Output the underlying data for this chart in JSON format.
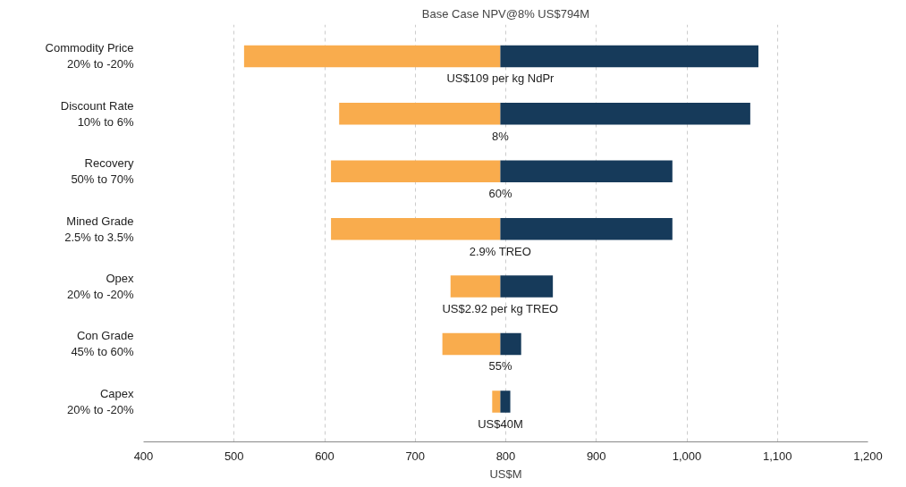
{
  "chart_data": {
    "type": "bar",
    "orientation": "horizontal",
    "title": "Base Case NPV@8% US$794M",
    "xlabel": "US$M",
    "categories": [
      "Commodity Price\n20% to -20%",
      "Discount Rate\n10% to 6%",
      "Recovery\n50% to 70%",
      "Mined Grade\n2.5% to 3.5%",
      "Opex\n20% to -20%",
      "Con Grade\n45% to 60%",
      "Capex\n20% to -20%"
    ],
    "series": [
      {
        "color": "#f9ac4d",
        "base": [
          511,
          616,
          607,
          607,
          739,
          730,
          785
        ],
        "values": [
          283,
          178,
          187,
          187,
          55,
          64,
          9
        ]
      },
      {
        "color": "#163a5a",
        "base": [
          794,
          794,
          794,
          794,
          794,
          794,
          794
        ],
        "values": [
          285,
          276,
          190,
          190,
          58,
          23,
          11
        ]
      }
    ],
    "annotations": [
      "US$109 per kg NdPr",
      "8%",
      "60%",
      "2.9% TREO",
      "US$2.92 per kg TREO",
      "55%",
      "US$40M"
    ],
    "xlim": [
      400,
      1200
    ],
    "xticks": [
      400,
      500,
      600,
      700,
      800,
      900,
      {
        "value": 1000,
        "label": "1,000"
      },
      {
        "value": 1100,
        "label": "1,100"
      },
      {
        "value": 1200,
        "label": "1,200"
      }
    ],
    "grid": "x"
  }
}
